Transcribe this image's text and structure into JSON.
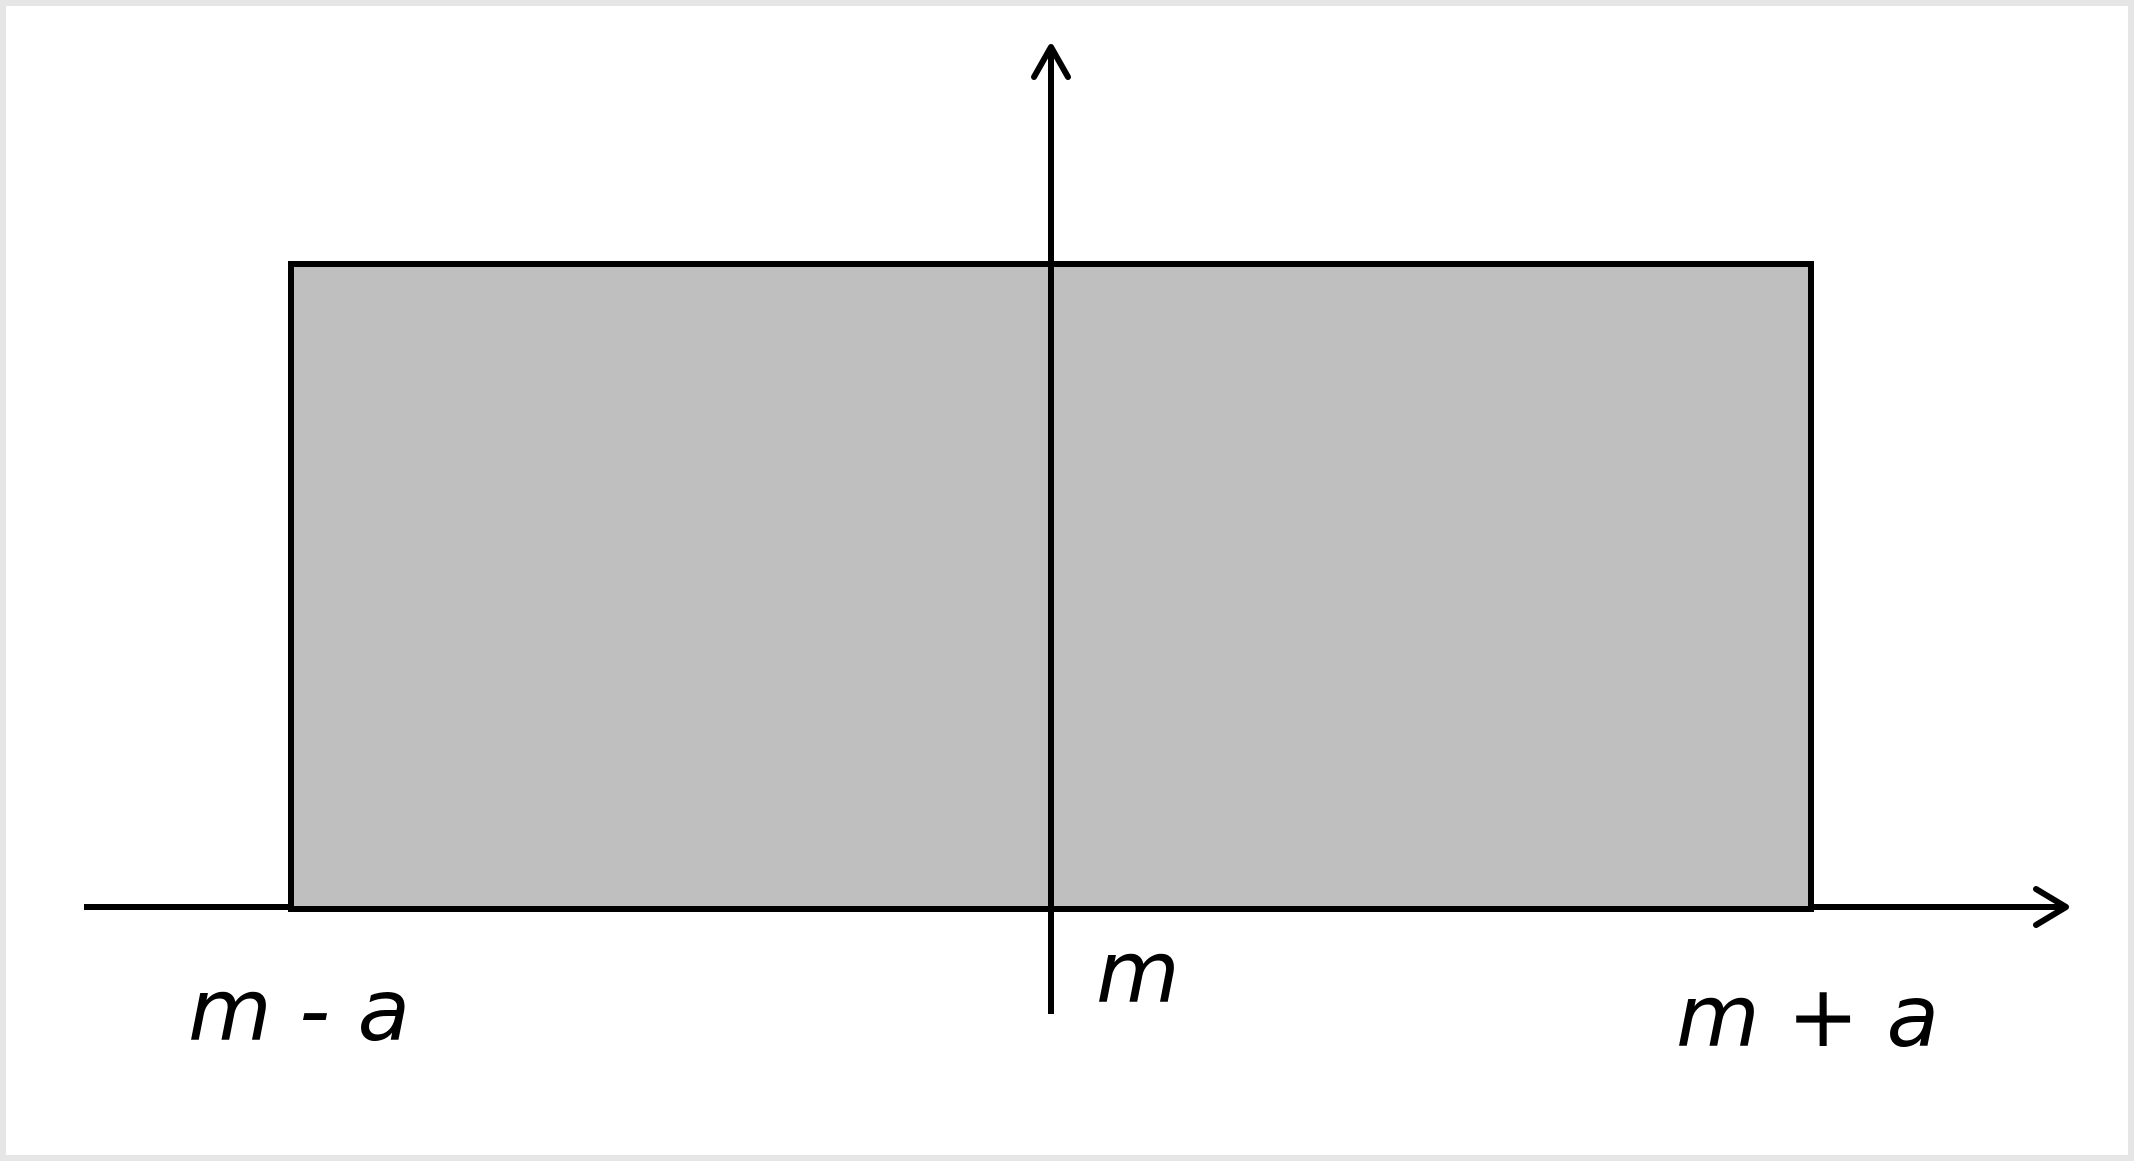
{
  "diagram": {
    "labels": {
      "left": "m - a",
      "center": "m",
      "right": "m + a"
    },
    "colors": {
      "fill": "#bfbfbf",
      "stroke": "#000000",
      "border": "#e6e6e6"
    }
  }
}
